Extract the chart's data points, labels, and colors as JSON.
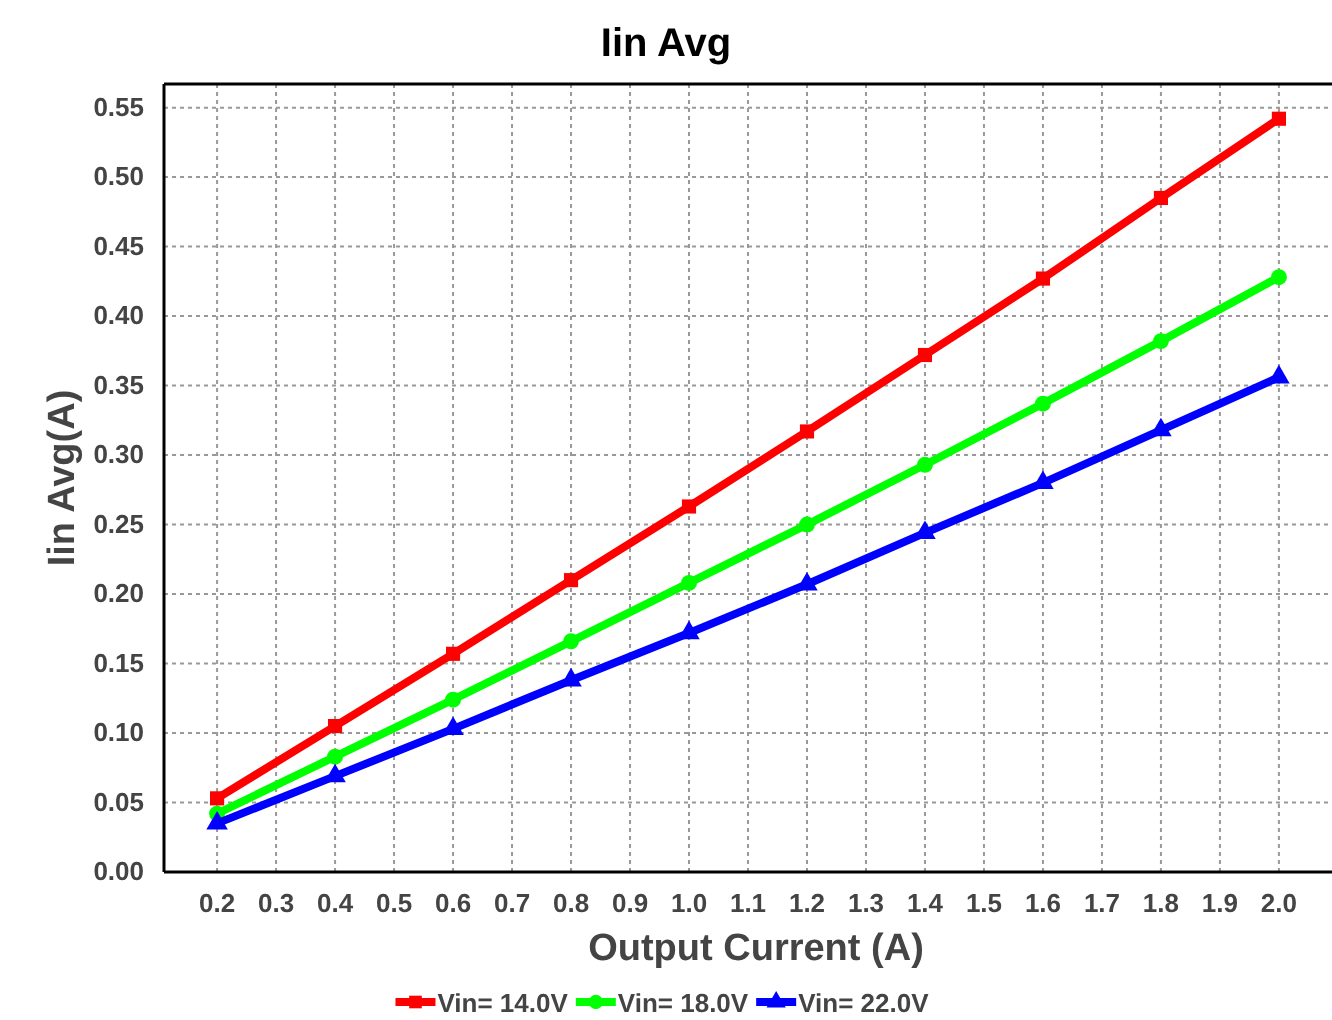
{
  "chart_data": {
    "type": "line",
    "title": "Iin Avg",
    "xlabel": "Output Current (A)",
    "ylabel": "Iin Avg(A)",
    "x": [
      0.2,
      0.4,
      0.6,
      0.8,
      1.0,
      1.2,
      1.4,
      1.6,
      1.8,
      2.0
    ],
    "series": [
      {
        "name": "Vin= 14.0V",
        "color": "#ff0000",
        "marker": "square",
        "values": [
          0.053,
          0.105,
          0.157,
          0.21,
          0.263,
          0.317,
          0.372,
          0.427,
          0.485,
          0.542
        ]
      },
      {
        "name": "Vin= 18.0V",
        "color": "#00ff00",
        "marker": "circle",
        "values": [
          0.042,
          0.083,
          0.124,
          0.166,
          0.208,
          0.25,
          0.293,
          0.337,
          0.382,
          0.428
        ]
      },
      {
        "name": "Vin= 22.0V",
        "color": "#0000ff",
        "marker": "triangle",
        "values": [
          0.035,
          0.069,
          0.103,
          0.138,
          0.172,
          0.207,
          0.244,
          0.28,
          0.318,
          0.356
        ]
      }
    ],
    "xlim": [
      0.11,
      2.09
    ],
    "ylim": [
      0,
      0.567
    ],
    "xticks": [
      {
        "value": 0.2,
        "label": "0.2"
      },
      {
        "value": 0.3,
        "label": "0.3"
      },
      {
        "value": 0.4,
        "label": "0.4"
      },
      {
        "value": 0.5,
        "label": "0.5"
      },
      {
        "value": 0.6,
        "label": "0.6"
      },
      {
        "value": 0.7,
        "label": "0.7"
      },
      {
        "value": 0.8,
        "label": "0.8"
      },
      {
        "value": 0.9,
        "label": "0.9"
      },
      {
        "value": 1.0,
        "label": "1.0"
      },
      {
        "value": 1.1,
        "label": "1.1"
      },
      {
        "value": 1.2,
        "label": "1.2"
      },
      {
        "value": 1.3,
        "label": "1.3"
      },
      {
        "value": 1.4,
        "label": "1.4"
      },
      {
        "value": 1.5,
        "label": "1.5"
      },
      {
        "value": 1.6,
        "label": "1.6"
      },
      {
        "value": 1.7,
        "label": "1.7"
      },
      {
        "value": 1.8,
        "label": "1.8"
      },
      {
        "value": 1.9,
        "label": "1.9"
      },
      {
        "value": 2.0,
        "label": "2.0"
      }
    ],
    "yticks": [
      {
        "value": 0,
        "label": "0.00"
      },
      {
        "value": 0.05,
        "label": "0.05"
      },
      {
        "value": 0.1,
        "label": "0.10"
      },
      {
        "value": 0.15,
        "label": "0.15"
      },
      {
        "value": 0.2,
        "label": "0.20"
      },
      {
        "value": 0.25,
        "label": "0.25"
      },
      {
        "value": 0.3,
        "label": "0.30"
      },
      {
        "value": 0.35,
        "label": "0.35"
      },
      {
        "value": 0.4,
        "label": "0.40"
      },
      {
        "value": 0.45,
        "label": "0.45"
      },
      {
        "value": 0.5,
        "label": "0.50"
      },
      {
        "value": 0.55,
        "label": "0.55"
      }
    ],
    "grid": true,
    "legend": "bottom",
    "line_style": "solid"
  }
}
